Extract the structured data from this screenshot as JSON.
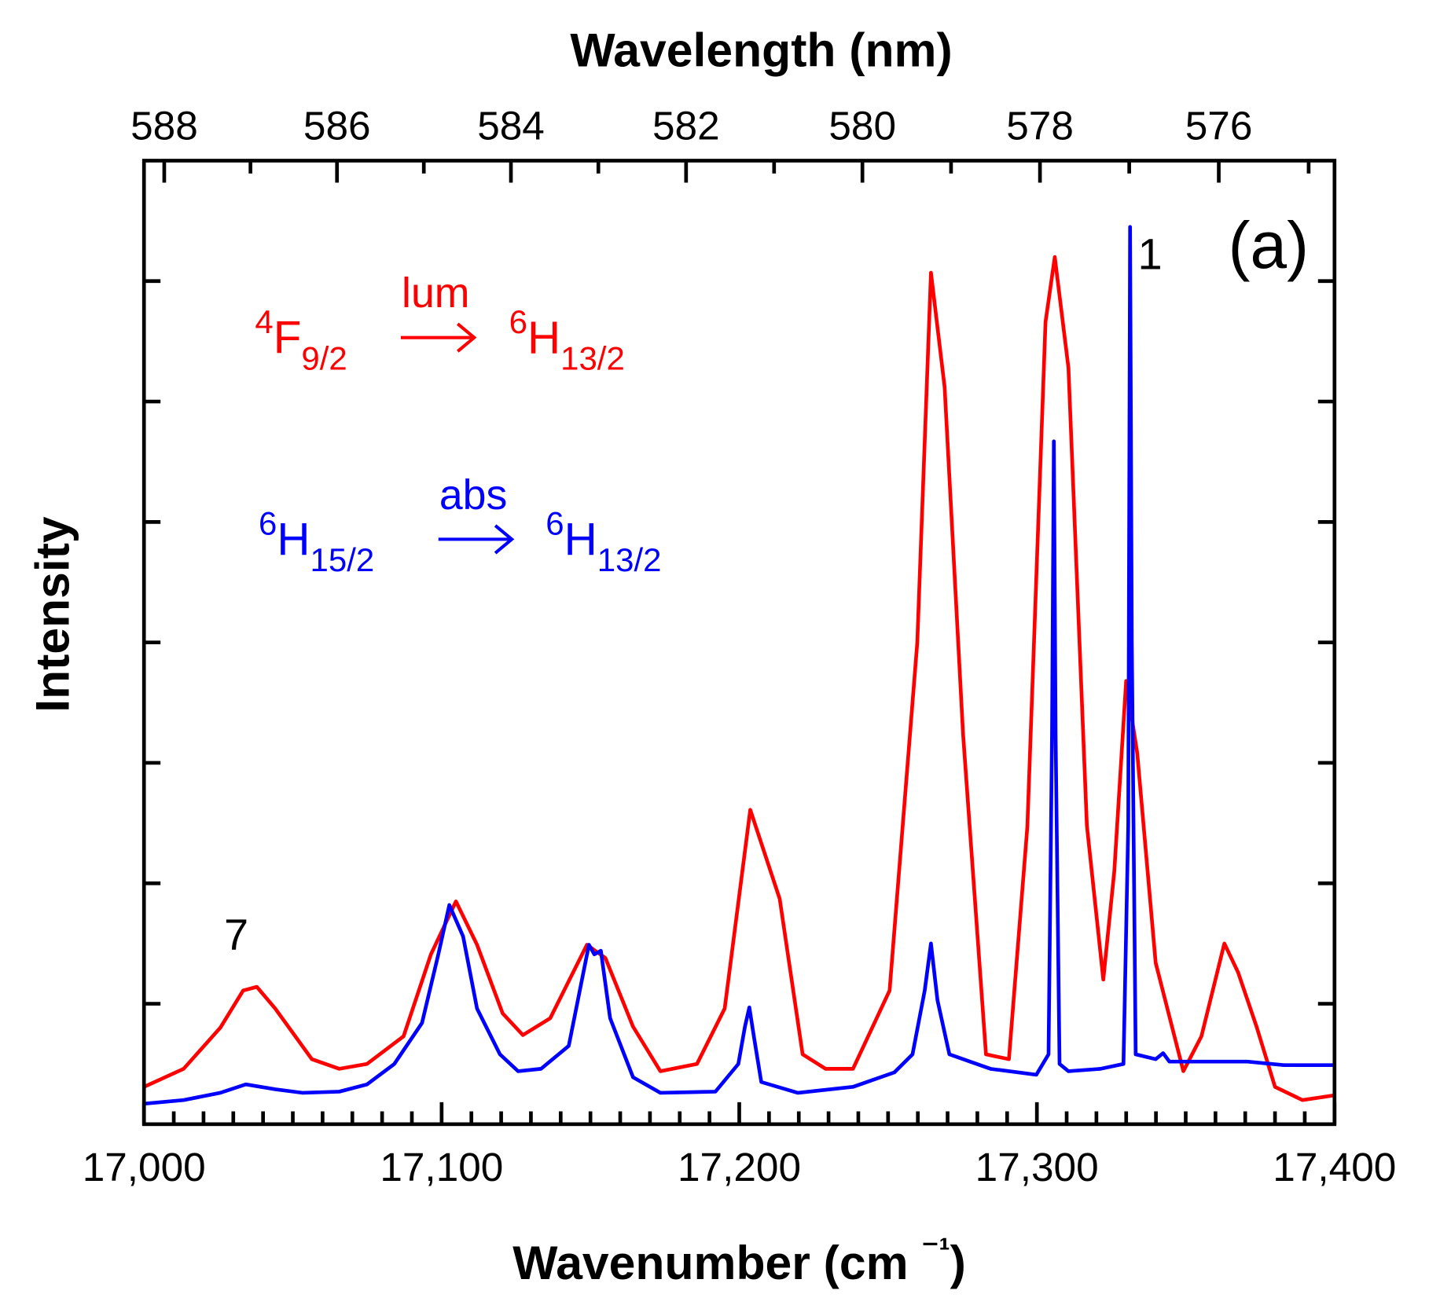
{
  "chart_data": {
    "type": "line",
    "title": "",
    "xlabel": "Wavenumber (cm⁻¹)",
    "ylabel": "Intensity",
    "x2label": "Wavelength (nm)",
    "xlim": [
      17000,
      17400
    ],
    "ylim": [
      0,
      8
    ],
    "xticks": [
      17000,
      17100,
      17200,
      17300,
      17400
    ],
    "xtick_labels": [
      "17,000",
      "17,100",
      "17,200",
      "17,300",
      "17,400"
    ],
    "x2ticks": [
      588,
      586,
      584,
      582,
      580,
      578,
      576
    ],
    "x2tick_labels": [
      "588",
      "586",
      "584",
      "582",
      "580",
      "578",
      "576"
    ],
    "yticks": [
      1,
      2,
      3,
      4,
      5,
      6,
      7
    ],
    "grid": false,
    "panel_label": "(a)",
    "peak_labels": [
      {
        "text": "1",
        "x": 17338,
        "y": 7.1
      },
      {
        "text": "7",
        "x": 17031,
        "y": 1.45
      }
    ],
    "annotations": {
      "lum": {
        "term_from": "F",
        "sup_from": "4",
        "sub_from": "9/2",
        "arrow_label": "lum",
        "term_to": "H",
        "sup_to": "6",
        "sub_to": "13/2",
        "color": "#ff0000"
      },
      "abs": {
        "term_from": "H",
        "sup_from": "6",
        "sub_from": "15/2",
        "arrow_label": "abs",
        "term_to": "H",
        "sup_to": "6",
        "sub_to": "13/2",
        "color": "#0000ff"
      }
    },
    "series": [
      {
        "name": "lum",
        "color": "#ff0000",
        "x": [
          17000,
          17013.3,
          17025.6,
          17033.3,
          17037.9,
          17044.1,
          17056.4,
          17065.6,
          17074.9,
          17087.2,
          17096.4,
          17104.8,
          17111.9,
          17120.5,
          17127.3,
          17136.5,
          17148.8,
          17155.0,
          17164.3,
          17173.5,
          17185.8,
          17195.1,
          17203.7,
          17213.6,
          17221.3,
          17229.0,
          17238.2,
          17250.5,
          17259.8,
          17264.4,
          17269.0,
          17275.2,
          17282.9,
          17290.6,
          17296.8,
          17302.9,
          17306.0,
          17310.6,
          17316.8,
          17322.3,
          17326.0,
          17330.0,
          17333.7,
          17339.9,
          17349.2,
          17355.3,
          17363.0,
          17367.6,
          17373.8,
          17380.0,
          17389.2,
          17400
        ],
        "y": [
          0.31,
          0.46,
          0.8,
          1.11,
          1.14,
          0.96,
          0.54,
          0.46,
          0.5,
          0.73,
          1.41,
          1.85,
          1.49,
          0.92,
          0.74,
          0.88,
          1.49,
          1.38,
          0.81,
          0.44,
          0.5,
          0.96,
          2.61,
          1.87,
          0.58,
          0.46,
          0.46,
          1.11,
          4.0,
          7.07,
          6.12,
          3.24,
          0.58,
          0.54,
          2.47,
          6.66,
          7.2,
          6.28,
          2.48,
          1.2,
          2.1,
          3.68,
          3.08,
          1.34,
          0.44,
          0.73,
          1.5,
          1.26,
          0.81,
          0.31,
          0.2,
          0.24
        ]
      },
      {
        "name": "abs",
        "color": "#0000ff",
        "x": [
          17000,
          17013.3,
          17025.6,
          17034.2,
          17044.1,
          17053.3,
          17065.6,
          17074.9,
          17084.1,
          17093.4,
          17098.9,
          17102.6,
          17107.2,
          17111.9,
          17119.6,
          17125.7,
          17133.4,
          17142.7,
          17149.5,
          17151.3,
          17153.5,
          17156.6,
          17164.3,
          17173.5,
          17192.0,
          17199.7,
          17201.9,
          17203.4,
          17204.9,
          17207.4,
          17219.7,
          17238.2,
          17252.1,
          17258.2,
          17262.3,
          17264.4,
          17266.6,
          17270.6,
          17284.4,
          17299.8,
          17303.9,
          17305.1,
          17305.7,
          17306.3,
          17307.6,
          17310.6,
          17321.4,
          17329.1,
          17330.7,
          17331.3,
          17331.9,
          17333.2,
          17339.9,
          17342.4,
          17344.5,
          17370.7,
          17383.0,
          17400
        ],
        "y": [
          0.17,
          0.2,
          0.26,
          0.33,
          0.29,
          0.26,
          0.27,
          0.33,
          0.5,
          0.84,
          1.41,
          1.82,
          1.56,
          0.96,
          0.58,
          0.44,
          0.46,
          0.65,
          1.49,
          1.41,
          1.44,
          0.88,
          0.39,
          0.26,
          0.27,
          0.5,
          0.81,
          0.97,
          0.73,
          0.35,
          0.26,
          0.31,
          0.43,
          0.58,
          1.11,
          1.5,
          1.03,
          0.58,
          0.46,
          0.41,
          0.58,
          3.24,
          5.67,
          3.24,
          0.5,
          0.44,
          0.46,
          0.5,
          2.48,
          7.45,
          3.99,
          0.58,
          0.54,
          0.59,
          0.52,
          0.52,
          0.49,
          0.49
        ]
      }
    ]
  }
}
